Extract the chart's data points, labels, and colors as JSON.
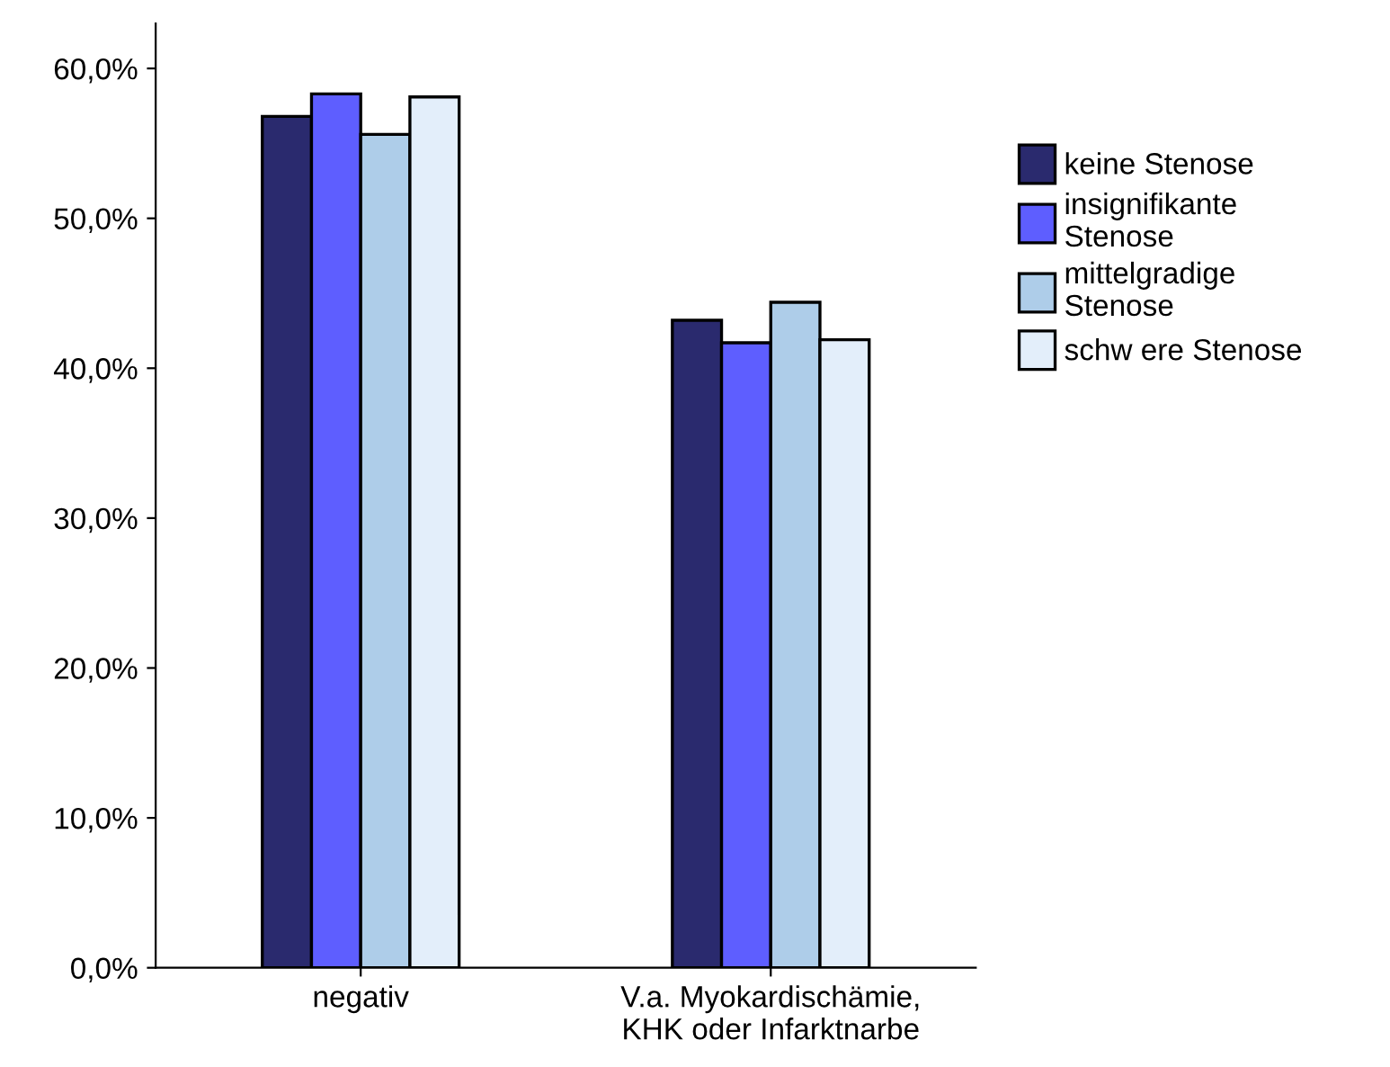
{
  "chart_data": {
    "type": "bar",
    "categories": [
      "negativ",
      "V.a. Myokardischämie,\nKHK oder Infarktnarbe"
    ],
    "series": [
      {
        "name": "keine Stenose",
        "color": "#2a2a6e",
        "values": [
          56.8,
          43.2
        ]
      },
      {
        "name": "insignifikante\nStenose",
        "color": "#5e5eff",
        "values": [
          58.3,
          41.7
        ]
      },
      {
        "name": "mittelgradige\nStenose",
        "color": "#aecde9",
        "values": [
          55.6,
          44.4
        ]
      },
      {
        "name": "schw ere Stenose",
        "color": "#e3eefa",
        "values": [
          58.1,
          41.9
        ]
      }
    ],
    "ylim": [
      0,
      63
    ],
    "yticks": [
      {
        "value": 0,
        "label": "0,0%"
      },
      {
        "value": 10,
        "label": "10,0%"
      },
      {
        "value": 20,
        "label": "20,0%"
      },
      {
        "value": 30,
        "label": "30,0%"
      },
      {
        "value": 40,
        "label": "40,0%"
      },
      {
        "value": 50,
        "label": "50,0%"
      },
      {
        "value": 60,
        "label": "60,0%"
      }
    ],
    "grid": false,
    "legend": "right"
  }
}
